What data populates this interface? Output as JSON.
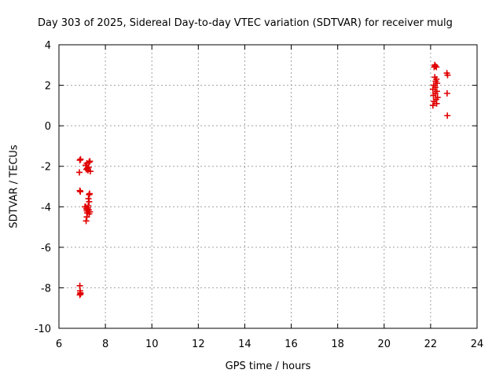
{
  "chart_data": {
    "type": "scatter",
    "title": "Day 303 of 2025, Sidereal Day-to-day VTEC variation (SDTVAR) for receiver mulg",
    "xlabel": "GPS time / hours",
    "ylabel": "SDTVAR / TECUs",
    "xlim": [
      6,
      24
    ],
    "ylim": [
      -10,
      4
    ],
    "xticks": [
      6,
      8,
      10,
      12,
      14,
      16,
      18,
      20,
      22,
      24
    ],
    "yticks": [
      -10,
      -8,
      -6,
      -4,
      -2,
      0,
      2,
      4
    ],
    "grid": true,
    "marker": "+",
    "marker_color": "#e00000",
    "series": [
      {
        "name": "SDTVAR",
        "points": [
          [
            6.9,
            -1.7
          ],
          [
            6.93,
            -1.65
          ],
          [
            6.88,
            -2.3
          ],
          [
            6.9,
            -3.2
          ],
          [
            6.92,
            -3.25
          ],
          [
            6.9,
            -7.9
          ],
          [
            6.91,
            -8.15
          ],
          [
            6.92,
            -8.25
          ],
          [
            6.9,
            -8.35
          ],
          [
            6.93,
            -8.3
          ],
          [
            7.15,
            -1.95
          ],
          [
            7.2,
            -1.85
          ],
          [
            7.22,
            -2.1
          ],
          [
            7.25,
            -2.2
          ],
          [
            7.3,
            -1.8
          ],
          [
            7.33,
            -1.75
          ],
          [
            7.28,
            -2.05
          ],
          [
            7.35,
            -2.25
          ],
          [
            7.18,
            -2.15
          ],
          [
            7.3,
            -3.4
          ],
          [
            7.32,
            -3.35
          ],
          [
            7.27,
            -3.6
          ],
          [
            7.3,
            -3.75
          ],
          [
            7.15,
            -4.0
          ],
          [
            7.18,
            -4.1
          ],
          [
            7.2,
            -4.2
          ],
          [
            7.22,
            -4.3
          ],
          [
            7.25,
            -4.05
          ],
          [
            7.28,
            -4.15
          ],
          [
            7.3,
            -4.35
          ],
          [
            7.33,
            -4.25
          ],
          [
            7.2,
            -4.5
          ],
          [
            7.17,
            -4.7
          ],
          [
            7.12,
            -4.0
          ],
          [
            7.26,
            -3.95
          ],
          [
            22.1,
            1.8
          ],
          [
            22.12,
            1.5
          ],
          [
            22.15,
            1.2
          ],
          [
            22.1,
            1.0
          ],
          [
            22.13,
            2.0
          ],
          [
            22.15,
            2.9
          ],
          [
            22.18,
            3.0
          ],
          [
            22.2,
            2.95
          ],
          [
            22.25,
            2.9
          ],
          [
            22.22,
            2.2
          ],
          [
            22.25,
            2.3
          ],
          [
            22.28,
            2.1
          ],
          [
            22.2,
            1.6
          ],
          [
            22.23,
            1.3
          ],
          [
            22.26,
            1.1
          ],
          [
            22.3,
            1.4
          ],
          [
            22.18,
            2.4
          ],
          [
            22.2,
            1.9
          ],
          [
            22.27,
            1.7
          ],
          [
            22.7,
            2.6
          ],
          [
            22.73,
            2.5
          ],
          [
            22.71,
            1.6
          ],
          [
            22.72,
            0.5
          ]
        ]
      }
    ]
  }
}
